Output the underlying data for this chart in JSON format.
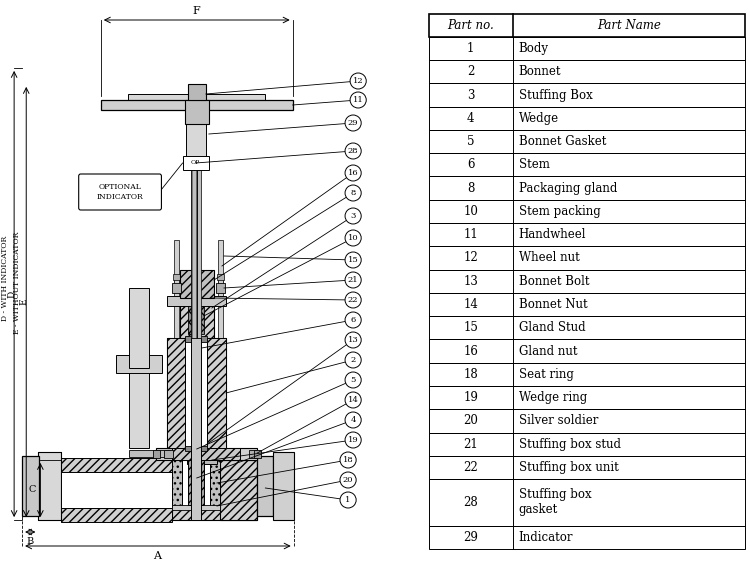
{
  "table_headers": [
    "Part no.",
    "Part Name"
  ],
  "table_data": [
    [
      "1",
      "Body"
    ],
    [
      "2",
      "Bonnet"
    ],
    [
      "3",
      "Stuffing Box"
    ],
    [
      "4",
      "Wedge"
    ],
    [
      "5",
      "Bonnet Gasket"
    ],
    [
      "6",
      "Stem"
    ],
    [
      "8",
      "Packaging gland"
    ],
    [
      "10",
      "Stem packing"
    ],
    [
      "11",
      "Handwheel"
    ],
    [
      "12",
      "Wheel nut"
    ],
    [
      "13",
      "Bonnet Bolt"
    ],
    [
      "14",
      "Bonnet Nut"
    ],
    [
      "15",
      "Gland Stud"
    ],
    [
      "16",
      "Gland nut"
    ],
    [
      "18",
      "Seat ring"
    ],
    [
      "19",
      "Wedge ring"
    ],
    [
      "20",
      "Silver soldier"
    ],
    [
      "21",
      "Stuffing box stud"
    ],
    [
      "22",
      "Stuffing box unit"
    ],
    [
      "28",
      "Stuffing box\ngasket"
    ],
    [
      "29",
      "Indicator"
    ]
  ],
  "bg_color": "#ffffff"
}
